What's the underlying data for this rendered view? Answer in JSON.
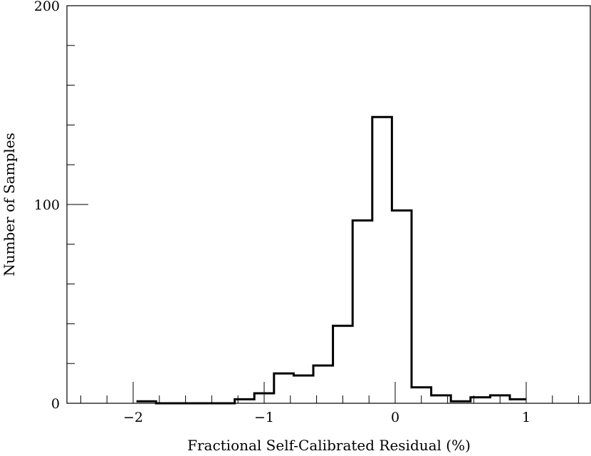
{
  "chart_data": {
    "type": "bar",
    "subtype": "step-histogram",
    "title": "",
    "xlabel": "Fractional Self-Calibrated Residual (%)",
    "ylabel": "Number of Samples",
    "xlim": [
      -2.5,
      1.5
    ],
    "ylim": [
      0,
      200
    ],
    "x_major_ticks": [
      -2,
      -1,
      0,
      1
    ],
    "x_tick_labels": [
      "−2",
      "−1",
      "0",
      "1"
    ],
    "x_minor_ticks": [
      -2.4,
      -2.2,
      -1.8,
      -1.6,
      -1.4,
      -1.2,
      -0.8,
      -0.6,
      -0.4,
      -0.2,
      0.2,
      0.4,
      0.6,
      0.8,
      1.2,
      1.4
    ],
    "y_major_ticks": [
      0,
      100,
      200
    ],
    "y_tick_labels": [
      "0",
      "100",
      "200"
    ],
    "y_minor_ticks": [
      20,
      40,
      60,
      80,
      120,
      140,
      160,
      180
    ],
    "grid": false,
    "bins": [
      {
        "x0": -1.975,
        "x1": -1.825,
        "y": 1
      },
      {
        "x0": -1.825,
        "x1": -1.675,
        "y": 0
      },
      {
        "x0": -1.675,
        "x1": -1.525,
        "y": 0
      },
      {
        "x0": -1.525,
        "x1": -1.375,
        "y": 0
      },
      {
        "x0": -1.375,
        "x1": -1.225,
        "y": 0
      },
      {
        "x0": -1.225,
        "x1": -1.075,
        "y": 2
      },
      {
        "x0": -1.075,
        "x1": -0.925,
        "y": 5
      },
      {
        "x0": -0.925,
        "x1": -0.775,
        "y": 15
      },
      {
        "x0": -0.775,
        "x1": -0.625,
        "y": 14
      },
      {
        "x0": -0.625,
        "x1": -0.475,
        "y": 19
      },
      {
        "x0": -0.475,
        "x1": -0.325,
        "y": 39
      },
      {
        "x0": -0.325,
        "x1": -0.175,
        "y": 92
      },
      {
        "x0": -0.175,
        "x1": -0.025,
        "y": 144
      },
      {
        "x0": -0.025,
        "x1": 0.125,
        "y": 97
      },
      {
        "x0": 0.125,
        "x1": 0.275,
        "y": 8
      },
      {
        "x0": 0.275,
        "x1": 0.425,
        "y": 4
      },
      {
        "x0": 0.425,
        "x1": 0.575,
        "y": 1
      },
      {
        "x0": 0.575,
        "x1": 0.725,
        "y": 3
      },
      {
        "x0": 0.725,
        "x1": 0.875,
        "y": 4
      },
      {
        "x0": 0.875,
        "x1": 1.0,
        "y": 2
      }
    ]
  }
}
